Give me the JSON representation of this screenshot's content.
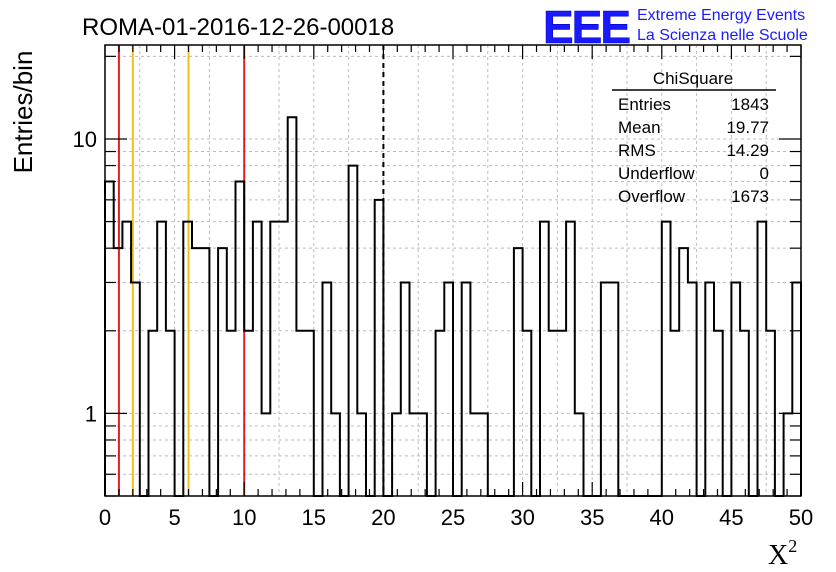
{
  "chart_data": {
    "type": "bar",
    "title": "ROMA-01-2016-12-26-00018",
    "xlabel": "X",
    "xlabel_sup": "2",
    "ylabel": "Entries/bin",
    "xlim": [
      0,
      50
    ],
    "ylim": [
      0.5,
      22
    ],
    "yscale": "log",
    "grid": true,
    "bin_width": 1,
    "x_ticks": [
      0,
      5,
      10,
      15,
      20,
      25,
      30,
      35,
      40,
      45,
      50
    ],
    "y_ticks": [
      1,
      10
    ],
    "bin_edges_start": [
      0,
      1,
      2,
      3,
      4,
      5,
      6,
      7,
      8,
      9,
      10,
      11,
      12,
      13,
      14,
      15,
      16,
      17,
      18,
      19,
      20,
      21,
      22,
      23,
      24,
      25,
      26,
      27,
      28,
      29,
      30,
      31,
      32,
      33,
      34,
      35,
      36,
      37,
      38,
      39,
      40,
      41,
      42,
      43,
      44,
      45,
      46,
      47,
      48,
      49
    ],
    "values_half_bins": [
      7,
      4,
      5,
      3,
      0,
      2,
      5,
      2,
      0,
      5,
      4,
      4,
      0,
      4,
      2,
      7,
      2,
      5,
      1,
      5,
      5,
      12,
      2,
      2,
      0,
      3,
      1,
      0,
      8,
      1,
      0,
      6,
      0,
      1,
      3,
      1,
      1,
      0,
      2,
      3,
      0,
      3,
      1,
      1,
      0,
      0,
      0,
      4,
      2,
      0,
      5,
      2,
      2,
      5,
      1,
      0,
      0,
      3,
      3,
      0,
      0,
      0,
      0,
      0,
      5,
      2,
      4,
      3,
      0,
      3,
      2,
      0,
      3,
      2,
      0,
      5,
      2,
      0,
      1,
      3
    ],
    "vertical_lines": [
      {
        "x": 1,
        "color": "#e02020",
        "style": "solid"
      },
      {
        "x": 2,
        "color": "#f0c020",
        "style": "solid"
      },
      {
        "x": 6,
        "color": "#f0c020",
        "style": "solid"
      },
      {
        "x": 10,
        "color": "#e02020",
        "style": "solid"
      },
      {
        "x": 20,
        "color": "#000000",
        "style": "dashed"
      }
    ],
    "stats_box": {
      "title": "ChiSquare",
      "rows": [
        {
          "label": "Entries",
          "value": "1843"
        },
        {
          "label": "Mean",
          "value": "19.77"
        },
        {
          "label": "RMS",
          "value": "14.29"
        },
        {
          "label": "Underflow",
          "value": "0"
        },
        {
          "label": "Overflow",
          "value": "1673"
        }
      ]
    }
  },
  "logo": {
    "mark": "EEE",
    "line1": "Extreme Energy Events",
    "line2": "La Scienza nelle Scuole",
    "color": "#1a1aff"
  }
}
